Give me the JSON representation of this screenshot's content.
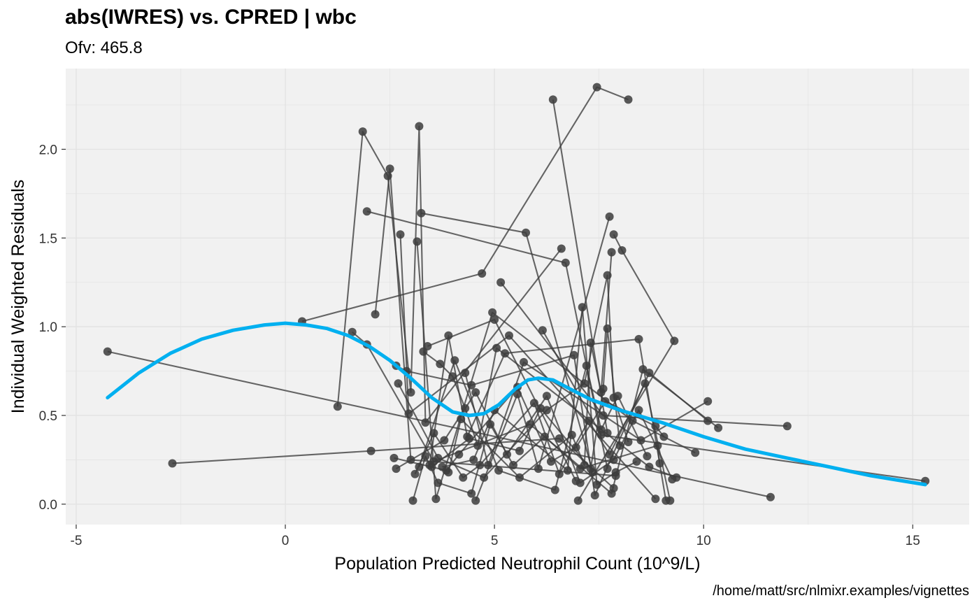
{
  "title": "abs(IWRES) vs. CPRED | wbc",
  "subtitle": "Ofv: 465.8",
  "caption": "/home/matt/src/nlmixr.examples/vignettes",
  "colors": {
    "panel": "#f1f1f1",
    "grid": "#e3e3e3",
    "points": "#3c3c3c",
    "smooth": "#00b0f0"
  },
  "chart_data": {
    "type": "scatter",
    "xlabel": "Population Predicted Neutrophil Count (10^9/L)",
    "ylabel": "Individual Weighted Residuals",
    "xlim": [
      -5.25,
      16.35
    ],
    "ylim": [
      -0.115,
      2.455
    ],
    "xticks": [
      {
        "value": -5,
        "label": "-5"
      },
      {
        "value": 0,
        "label": "0"
      },
      {
        "value": 5,
        "label": "5"
      },
      {
        "value": 10,
        "label": "10"
      },
      {
        "value": 15,
        "label": "15"
      }
    ],
    "yticks": [
      {
        "value": 0,
        "label": "0.0"
      },
      {
        "value": 0.5,
        "label": "0.5"
      },
      {
        "value": 1,
        "label": "1.0"
      },
      {
        "value": 1.5,
        "label": "1.5"
      },
      {
        "value": 2,
        "label": "2.0"
      }
    ],
    "grid": true,
    "paths": [
      [
        [
          -4.25,
          0.86
        ],
        [
          11.6,
          0.04
        ]
      ],
      [
        [
          -2.7,
          0.23
        ],
        [
          2.05,
          0.3
        ],
        [
          6.55,
          0.37
        ],
        [
          7.85,
          0.09
        ]
      ],
      [
        [
          0.4,
          1.03
        ],
        [
          4.7,
          1.3
        ],
        [
          7.45,
          2.35
        ],
        [
          8.2,
          2.28
        ]
      ],
      [
        [
          1.25,
          0.55
        ],
        [
          1.85,
          2.1
        ],
        [
          2.45,
          1.85
        ],
        [
          3.0,
          0.63
        ],
        [
          3.2,
          2.13
        ],
        [
          3.35,
          0.46
        ],
        [
          6.6,
          1.44
        ]
      ],
      [
        [
          1.95,
          1.65
        ],
        [
          6.7,
          1.36
        ],
        [
          7.7,
          0.2
        ]
      ],
      [
        [
          3.25,
          1.64
        ],
        [
          5.75,
          1.53
        ],
        [
          7.35,
          0.18
        ]
      ],
      [
        [
          3.4,
          0.89
        ],
        [
          5.0,
          1.04
        ],
        [
          6.95,
          0.13
        ]
      ],
      [
        [
          4.3,
          0.74
        ],
        [
          4.85,
          0.22
        ],
        [
          5.7,
          0.8
        ],
        [
          8.5,
          0.36
        ],
        [
          10.1,
          0.58
        ]
      ],
      [
        [
          5.15,
          1.25
        ],
        [
          7.6,
          0.5
        ],
        [
          12.0,
          0.44
        ]
      ],
      [
        [
          6.4,
          2.28
        ],
        [
          7.7,
          0.4
        ]
      ],
      [
        [
          7.85,
          1.52
        ],
        [
          8.05,
          1.43
        ],
        [
          9.3,
          0.92
        ],
        [
          7.0,
          0.02
        ]
      ],
      [
        [
          7.75,
          1.62
        ],
        [
          6.05,
          0.2
        ],
        [
          5.55,
          0.62
        ],
        [
          4.55,
          0.02
        ]
      ],
      [
        [
          2.15,
          1.07
        ],
        [
          2.5,
          1.89
        ],
        [
          3.0,
          0.25
        ],
        [
          7.9,
          0.16
        ]
      ],
      [
        [
          2.75,
          1.52
        ],
        [
          2.95,
          0.51
        ],
        [
          5.35,
          0.95
        ],
        [
          8.85,
          0.03
        ]
      ],
      [
        [
          3.15,
          1.48
        ],
        [
          3.6,
          0.03
        ],
        [
          4.95,
          1.08
        ],
        [
          8.3,
          0.47
        ],
        [
          9.8,
          0.29
        ]
      ],
      [
        [
          6.15,
          0.98
        ],
        [
          7.55,
          0.39
        ],
        [
          15.3,
          0.13
        ]
      ],
      [
        [
          1.6,
          0.97
        ],
        [
          1.95,
          0.9
        ],
        [
          3.55,
          0.24
        ],
        [
          5.85,
          0.45
        ],
        [
          7.8,
          0.06
        ],
        [
          8.55,
          0.76
        ],
        [
          10.35,
          0.43
        ]
      ],
      [
        [
          2.65,
          0.78
        ],
        [
          2.9,
          0.75
        ],
        [
          4.45,
          0.67
        ],
        [
          6.9,
          0.84
        ],
        [
          7.4,
          0.05
        ],
        [
          8.7,
          0.74
        ],
        [
          10.1,
          0.47
        ]
      ],
      [
        [
          3.3,
          0.86
        ],
        [
          3.7,
          0.79
        ],
        [
          4.0,
          0.72
        ],
        [
          4.3,
          0.54
        ],
        [
          4.6,
          0.33
        ],
        [
          5.05,
          0.88
        ],
        [
          8.7,
          0.21
        ],
        [
          9.35,
          0.15
        ]
      ],
      [
        [
          3.45,
          0.22
        ],
        [
          3.9,
          0.95
        ],
        [
          4.35,
          0.38
        ],
        [
          5.25,
          0.85
        ],
        [
          8.45,
          0.93
        ],
        [
          9.1,
          0.02
        ]
      ],
      [
        [
          2.6,
          0.26
        ],
        [
          3.85,
          0.19
        ],
        [
          4.15,
          0.28
        ],
        [
          5.55,
          0.66
        ],
        [
          6.35,
          0.24
        ],
        [
          6.95,
          0.32
        ],
        [
          7.65,
          0.58
        ],
        [
          8.85,
          0.44
        ],
        [
          9.05,
          0.38
        ]
      ],
      [
        [
          3.05,
          0.02
        ],
        [
          3.35,
          0.27
        ],
        [
          3.65,
          0.12
        ],
        [
          4.45,
          0.06
        ],
        [
          4.9,
          0.45
        ],
        [
          5.45,
          0.22
        ],
        [
          6.2,
          0.38
        ],
        [
          7.05,
          0.2
        ],
        [
          8.9,
          0.33
        ],
        [
          8.95,
          0.23
        ]
      ],
      [
        [
          3.1,
          0.17
        ],
        [
          3.55,
          0.4
        ],
        [
          4.25,
          0.15
        ],
        [
          4.65,
          0.22
        ],
        [
          5.95,
          0.57
        ],
        [
          6.55,
          0.17
        ],
        [
          7.25,
          0.47
        ],
        [
          7.75,
          0.28
        ],
        [
          8.6,
          0.68
        ],
        [
          9.2,
          0.02
        ]
      ],
      [
        [
          2.65,
          0.2
        ],
        [
          3.8,
          0.36
        ],
        [
          4.55,
          0.63
        ],
        [
          5.3,
          0.28
        ],
        [
          6.25,
          0.61
        ],
        [
          7.05,
          0.12
        ],
        [
          7.85,
          0.25
        ],
        [
          8.45,
          0.53
        ],
        [
          9.25,
          0.14
        ]
      ],
      [
        [
          3.2,
          0.21
        ],
        [
          4.05,
          0.81
        ],
        [
          5.1,
          0.19
        ],
        [
          6.45,
          0.08
        ],
        [
          7.2,
          0.78
        ],
        [
          7.55,
          0.42
        ],
        [
          7.95,
          0.61
        ],
        [
          8.65,
          0.27
        ]
      ],
      [
        [
          3.5,
          0.21
        ],
        [
          4.4,
          0.37
        ],
        [
          5.6,
          0.3
        ],
        [
          6.1,
          0.54
        ],
        [
          7.3,
          0.2
        ],
        [
          7.6,
          0.65
        ],
        [
          7.7,
          0.99
        ],
        [
          8.0,
          0.33
        ]
      ],
      [
        [
          3.75,
          0.21
        ],
        [
          4.5,
          0.25
        ],
        [
          5.0,
          0.53
        ],
        [
          6.75,
          0.19
        ],
        [
          7.1,
          1.11
        ],
        [
          7.45,
          0.11
        ],
        [
          7.9,
          0.18
        ],
        [
          8.4,
          0.24
        ]
      ],
      [
        [
          3.9,
          0.18
        ],
        [
          4.2,
          0.48
        ],
        [
          5.6,
          0.15
        ],
        [
          6.85,
          0.39
        ],
        [
          7.15,
          0.22
        ],
        [
          7.3,
          0.91
        ],
        [
          7.55,
          0.63
        ],
        [
          7.8,
          1.42
        ]
      ],
      [
        [
          2.7,
          0.68
        ],
        [
          3.65,
          0.26
        ],
        [
          4.75,
          0.15
        ],
        [
          6.25,
          0.53
        ],
        [
          7.15,
          0.68
        ],
        [
          7.7,
          1.29
        ],
        [
          7.85,
          0.6
        ],
        [
          8.2,
          0.35
        ]
      ]
    ],
    "smooth": [
      [
        -4.25,
        0.6
      ],
      [
        -3.5,
        0.74
      ],
      [
        -2.75,
        0.85
      ],
      [
        -2.0,
        0.93
      ],
      [
        -1.25,
        0.98
      ],
      [
        -0.5,
        1.01
      ],
      [
        0.0,
        1.02
      ],
      [
        0.5,
        1.01
      ],
      [
        1.0,
        0.99
      ],
      [
        1.5,
        0.95
      ],
      [
        2.0,
        0.89
      ],
      [
        2.5,
        0.81
      ],
      [
        3.0,
        0.71
      ],
      [
        3.5,
        0.6
      ],
      [
        4.0,
        0.52
      ],
      [
        4.4,
        0.5
      ],
      [
        4.75,
        0.51
      ],
      [
        5.1,
        0.56
      ],
      [
        5.5,
        0.65
      ],
      [
        5.8,
        0.7
      ],
      [
        6.05,
        0.71
      ],
      [
        6.4,
        0.7
      ],
      [
        6.8,
        0.65
      ],
      [
        7.3,
        0.59
      ],
      [
        8.0,
        0.53
      ],
      [
        9.0,
        0.46
      ],
      [
        10.0,
        0.38
      ],
      [
        11.0,
        0.31
      ],
      [
        12.0,
        0.26
      ],
      [
        13.0,
        0.21
      ],
      [
        14.0,
        0.16
      ],
      [
        15.3,
        0.11
      ]
    ]
  }
}
